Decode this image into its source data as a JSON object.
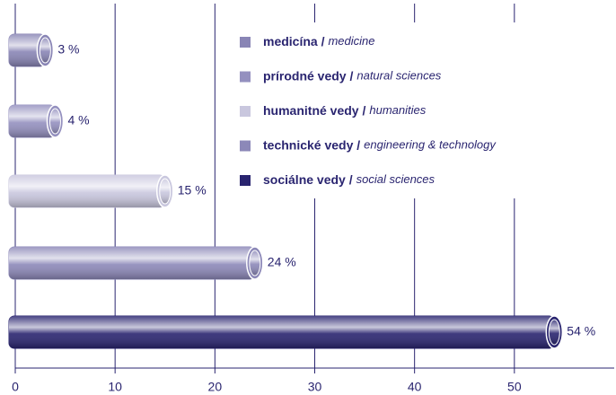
{
  "chart_data": {
    "type": "bar",
    "orientation": "horizontal",
    "categories": [
      "medicína /",
      "prírodné vedy /",
      "humanitné vedy /",
      "technické vedy /",
      "sociálne vedy /"
    ],
    "category_translations": [
      "medicine",
      "natural sciences",
      "humanities",
      "engineering & technology",
      "social sciences"
    ],
    "values": [
      3,
      4,
      15,
      24,
      54
    ],
    "value_labels": [
      "3 %",
      "4 %",
      "15 %",
      "24 %",
      "54 %"
    ],
    "colors": [
      "#8985b5",
      "#9490bf",
      "#c9c7de",
      "#8c88b8",
      "#29246f"
    ],
    "xlim": [
      0,
      60
    ],
    "xticks": [
      0,
      10,
      20,
      30,
      40,
      50
    ],
    "grid": true
  }
}
